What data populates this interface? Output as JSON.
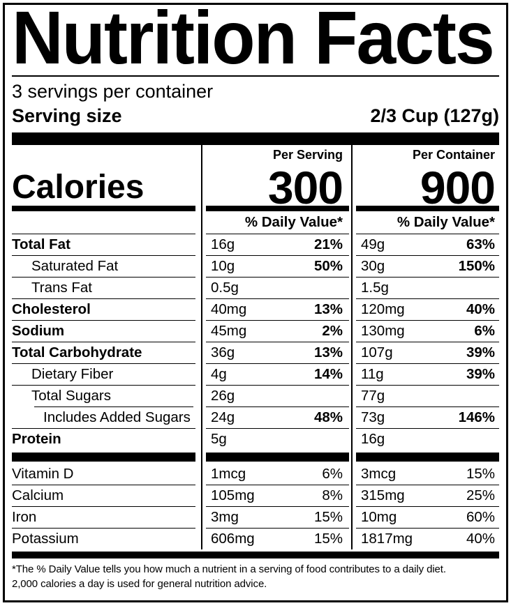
{
  "title": "Nutrition Facts",
  "servings_per_container": "3 servings per container",
  "serving_size": {
    "label": "Serving size",
    "value": "2/3 Cup (127g)"
  },
  "col_headers": {
    "serving": "Per Serving",
    "container": "Per Container"
  },
  "calories": {
    "label": "Calories",
    "serving": "300",
    "container": "900"
  },
  "dv_header": "% Daily Value*",
  "rows": [
    {
      "label": "Total Fat",
      "s_amt": "16g",
      "s_dv": "21%",
      "c_amt": "49g",
      "c_dv": "63%"
    },
    {
      "label": "Saturated Fat",
      "s_amt": "10g",
      "s_dv": "50%",
      "c_amt": "30g",
      "c_dv": "150%"
    },
    {
      "label": "Trans Fat",
      "s_amt": "0.5g",
      "s_dv": "",
      "c_amt": "1.5g",
      "c_dv": ""
    },
    {
      "label": "Cholesterol",
      "s_amt": "40mg",
      "s_dv": "13%",
      "c_amt": "120mg",
      "c_dv": "40%"
    },
    {
      "label": "Sodium",
      "s_amt": "45mg",
      "s_dv": "2%",
      "c_amt": "130mg",
      "c_dv": "6%"
    },
    {
      "label": "Total Carbohydrate",
      "s_amt": "36g",
      "s_dv": "13%",
      "c_amt": "107g",
      "c_dv": "39%"
    },
    {
      "label": "Dietary Fiber",
      "s_amt": "4g",
      "s_dv": "14%",
      "c_amt": "11g",
      "c_dv": "39%"
    },
    {
      "label": "Total Sugars",
      "s_amt": "26g",
      "s_dv": "",
      "c_amt": "77g",
      "c_dv": ""
    },
    {
      "label": "Includes Added Sugars",
      "s_amt": "24g",
      "s_dv": "48%",
      "c_amt": "73g",
      "c_dv": "146%"
    },
    {
      "label": "Protein",
      "s_amt": "5g",
      "s_dv": "",
      "c_amt": "16g",
      "c_dv": ""
    }
  ],
  "vitamins": [
    {
      "label": "Vitamin D",
      "s_amt": "1mcg",
      "s_dv": "6%",
      "c_amt": "3mcg",
      "c_dv": "15%"
    },
    {
      "label": "Calcium",
      "s_amt": "105mg",
      "s_dv": "8%",
      "c_amt": "315mg",
      "c_dv": "25%"
    },
    {
      "label": "Iron",
      "s_amt": "3mg",
      "s_dv": "15%",
      "c_amt": "10mg",
      "c_dv": "60%"
    },
    {
      "label": "Potassium",
      "s_amt": "606mg",
      "s_dv": "15%",
      "c_amt": "1817mg",
      "c_dv": "40%"
    }
  ],
  "footnote": {
    "line1": "*The % Daily Value tells you how much a nutrient in a serving of food contributes to a daily diet.",
    "line2": "2,000 calories a day is used for general nutrition advice."
  }
}
